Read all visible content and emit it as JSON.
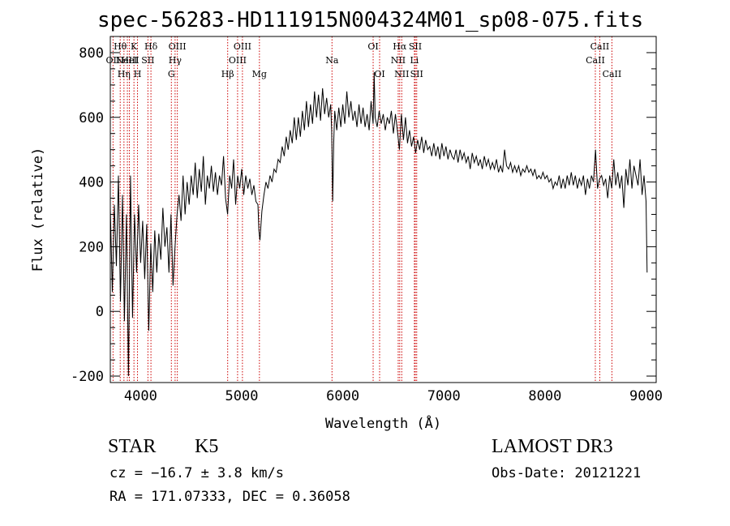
{
  "header": {
    "title": "spec-56283-HD111915N004324M01_sp08-075.fits"
  },
  "info": {
    "class_label": "STAR",
    "subclass": "K5",
    "survey": "LAMOST DR3",
    "cz_text": "cz = −16.7 ± 3.8 km/s",
    "obs_date_text": "Obs-Date: 20121221",
    "radec_text": "RA = 171.07333, DEC =    0.36058"
  },
  "chart_data": {
    "type": "line",
    "title": "spec-56283-HD111915N004324M01_sp08-075.fits",
    "xlabel": "Wavelength (Å)",
    "ylabel": "Flux (relative)",
    "xlim": [
      3700,
      9100
    ],
    "ylim": [
      -220,
      850
    ],
    "xticks": [
      4000,
      5000,
      6000,
      7000,
      8000,
      9000
    ],
    "yticks": [
      -200,
      0,
      200,
      400,
      600,
      800
    ],
    "line_color": "#000000",
    "marker_color": "#cc0000",
    "spectrum": [
      [
        3700,
        320
      ],
      [
        3720,
        60
      ],
      [
        3740,
        330
      ],
      [
        3760,
        140
      ],
      [
        3780,
        420
      ],
      [
        3800,
        30
      ],
      [
        3820,
        360
      ],
      [
        3840,
        -30
      ],
      [
        3860,
        300
      ],
      [
        3880,
        -200
      ],
      [
        3900,
        420
      ],
      [
        3920,
        -20
      ],
      [
        3940,
        300
      ],
      [
        3960,
        120
      ],
      [
        3980,
        330
      ],
      [
        4000,
        150
      ],
      [
        4020,
        280
      ],
      [
        4040,
        100
      ],
      [
        4060,
        270
      ],
      [
        4080,
        -60
      ],
      [
        4100,
        210
      ],
      [
        4120,
        60
      ],
      [
        4140,
        250
      ],
      [
        4160,
        120
      ],
      [
        4180,
        240
      ],
      [
        4200,
        160
      ],
      [
        4220,
        320
      ],
      [
        4240,
        200
      ],
      [
        4260,
        260
      ],
      [
        4280,
        120
      ],
      [
        4300,
        300
      ],
      [
        4320,
        80
      ],
      [
        4340,
        200
      ],
      [
        4360,
        300
      ],
      [
        4380,
        360
      ],
      [
        4400,
        280
      ],
      [
        4420,
        420
      ],
      [
        4440,
        300
      ],
      [
        4460,
        400
      ],
      [
        4480,
        330
      ],
      [
        4500,
        420
      ],
      [
        4520,
        360
      ],
      [
        4540,
        460
      ],
      [
        4560,
        350
      ],
      [
        4580,
        440
      ],
      [
        4600,
        370
      ],
      [
        4620,
        480
      ],
      [
        4640,
        330
      ],
      [
        4660,
        420
      ],
      [
        4680,
        380
      ],
      [
        4700,
        450
      ],
      [
        4720,
        370
      ],
      [
        4740,
        430
      ],
      [
        4760,
        360
      ],
      [
        4780,
        420
      ],
      [
        4800,
        390
      ],
      [
        4820,
        480
      ],
      [
        4840,
        350
      ],
      [
        4860,
        300
      ],
      [
        4880,
        420
      ],
      [
        4900,
        380
      ],
      [
        4920,
        470
      ],
      [
        4940,
        330
      ],
      [
        4960,
        420
      ],
      [
        4980,
        380
      ],
      [
        5000,
        440
      ],
      [
        5020,
        360
      ],
      [
        5040,
        420
      ],
      [
        5060,
        380
      ],
      [
        5080,
        410
      ],
      [
        5100,
        360
      ],
      [
        5120,
        390
      ],
      [
        5140,
        340
      ],
      [
        5160,
        330
      ],
      [
        5170,
        250
      ],
      [
        5180,
        220
      ],
      [
        5200,
        310
      ],
      [
        5220,
        360
      ],
      [
        5240,
        400
      ],
      [
        5260,
        380
      ],
      [
        5280,
        420
      ],
      [
        5300,
        400
      ],
      [
        5320,
        440
      ],
      [
        5340,
        430
      ],
      [
        5360,
        470
      ],
      [
        5380,
        460
      ],
      [
        5400,
        510
      ],
      [
        5420,
        480
      ],
      [
        5440,
        540
      ],
      [
        5460,
        500
      ],
      [
        5480,
        560
      ],
      [
        5500,
        520
      ],
      [
        5520,
        600
      ],
      [
        5540,
        530
      ],
      [
        5560,
        600
      ],
      [
        5580,
        540
      ],
      [
        5600,
        620
      ],
      [
        5620,
        560
      ],
      [
        5640,
        650
      ],
      [
        5660,
        570
      ],
      [
        5680,
        640
      ],
      [
        5700,
        580
      ],
      [
        5720,
        680
      ],
      [
        5740,
        600
      ],
      [
        5760,
        670
      ],
      [
        5780,
        590
      ],
      [
        5800,
        690
      ],
      [
        5820,
        610
      ],
      [
        5840,
        660
      ],
      [
        5860,
        600
      ],
      [
        5880,
        640
      ],
      [
        5890,
        560
      ],
      [
        5900,
        340
      ],
      [
        5910,
        520
      ],
      [
        5920,
        620
      ],
      [
        5940,
        560
      ],
      [
        5960,
        630
      ],
      [
        5980,
        570
      ],
      [
        6000,
        640
      ],
      [
        6020,
        580
      ],
      [
        6040,
        680
      ],
      [
        6060,
        600
      ],
      [
        6080,
        650
      ],
      [
        6100,
        590
      ],
      [
        6120,
        620
      ],
      [
        6140,
        570
      ],
      [
        6160,
        640
      ],
      [
        6180,
        580
      ],
      [
        6200,
        630
      ],
      [
        6220,
        570
      ],
      [
        6240,
        610
      ],
      [
        6260,
        560
      ],
      [
        6280,
        650
      ],
      [
        6300,
        580
      ],
      [
        6310,
        740
      ],
      [
        6320,
        600
      ],
      [
        6340,
        570
      ],
      [
        6360,
        620
      ],
      [
        6380,
        580
      ],
      [
        6400,
        610
      ],
      [
        6420,
        560
      ],
      [
        6440,
        600
      ],
      [
        6460,
        580
      ],
      [
        6480,
        620
      ],
      [
        6500,
        550
      ],
      [
        6520,
        610
      ],
      [
        6540,
        560
      ],
      [
        6560,
        500
      ],
      [
        6580,
        610
      ],
      [
        6600,
        530
      ],
      [
        6620,
        600
      ],
      [
        6640,
        520
      ],
      [
        6660,
        560
      ],
      [
        6680,
        510
      ],
      [
        6700,
        540
      ],
      [
        6720,
        490
      ],
      [
        6740,
        530
      ],
      [
        6760,
        500
      ],
      [
        6780,
        540
      ],
      [
        6800,
        490
      ],
      [
        6820,
        530
      ],
      [
        6840,
        500
      ],
      [
        6860,
        510
      ],
      [
        6880,
        480
      ],
      [
        6900,
        520
      ],
      [
        6920,
        480
      ],
      [
        6940,
        510
      ],
      [
        6960,
        470
      ],
      [
        6980,
        520
      ],
      [
        7000,
        480
      ],
      [
        7020,
        510
      ],
      [
        7040,
        470
      ],
      [
        7060,
        500
      ],
      [
        7080,
        480
      ],
      [
        7100,
        470
      ],
      [
        7120,
        500
      ],
      [
        7140,
        460
      ],
      [
        7160,
        500
      ],
      [
        7180,
        470
      ],
      [
        7200,
        490
      ],
      [
        7220,
        460
      ],
      [
        7240,
        480
      ],
      [
        7260,
        440
      ],
      [
        7280,
        490
      ],
      [
        7300,
        460
      ],
      [
        7320,
        480
      ],
      [
        7340,
        450
      ],
      [
        7360,
        470
      ],
      [
        7380,
        440
      ],
      [
        7400,
        480
      ],
      [
        7420,
        450
      ],
      [
        7440,
        470
      ],
      [
        7460,
        440
      ],
      [
        7480,
        460
      ],
      [
        7500,
        440
      ],
      [
        7520,
        470
      ],
      [
        7540,
        430
      ],
      [
        7560,
        450
      ],
      [
        7580,
        430
      ],
      [
        7600,
        500
      ],
      [
        7620,
        450
      ],
      [
        7640,
        440
      ],
      [
        7660,
        460
      ],
      [
        7680,
        430
      ],
      [
        7700,
        450
      ],
      [
        7720,
        430
      ],
      [
        7740,
        450
      ],
      [
        7760,
        420
      ],
      [
        7780,
        440
      ],
      [
        7800,
        430
      ],
      [
        7820,
        450
      ],
      [
        7840,
        430
      ],
      [
        7860,
        440
      ],
      [
        7880,
        420
      ],
      [
        7900,
        440
      ],
      [
        7920,
        410
      ],
      [
        7940,
        420
      ],
      [
        7960,
        410
      ],
      [
        7980,
        430
      ],
      [
        8000,
        410
      ],
      [
        8020,
        420
      ],
      [
        8040,
        400
      ],
      [
        8060,
        410
      ],
      [
        8080,
        380
      ],
      [
        8100,
        400
      ],
      [
        8120,
        390
      ],
      [
        8140,
        420
      ],
      [
        8160,
        380
      ],
      [
        8180,
        410
      ],
      [
        8200,
        380
      ],
      [
        8220,
        420
      ],
      [
        8240,
        390
      ],
      [
        8260,
        430
      ],
      [
        8280,
        390
      ],
      [
        8300,
        420
      ],
      [
        8320,
        380
      ],
      [
        8340,
        410
      ],
      [
        8360,
        390
      ],
      [
        8380,
        420
      ],
      [
        8400,
        360
      ],
      [
        8420,
        410
      ],
      [
        8440,
        380
      ],
      [
        8460,
        420
      ],
      [
        8480,
        400
      ],
      [
        8500,
        500
      ],
      [
        8520,
        380
      ],
      [
        8540,
        410
      ],
      [
        8560,
        420
      ],
      [
        8580,
        390
      ],
      [
        8600,
        410
      ],
      [
        8620,
        350
      ],
      [
        8640,
        420
      ],
      [
        8660,
        380
      ],
      [
        8680,
        470
      ],
      [
        8700,
        390
      ],
      [
        8720,
        430
      ],
      [
        8740,
        380
      ],
      [
        8760,
        420
      ],
      [
        8780,
        320
      ],
      [
        8800,
        440
      ],
      [
        8820,
        390
      ],
      [
        8840,
        470
      ],
      [
        8860,
        380
      ],
      [
        8880,
        450
      ],
      [
        8900,
        420
      ],
      [
        8920,
        390
      ],
      [
        8940,
        470
      ],
      [
        8960,
        360
      ],
      [
        8980,
        420
      ],
      [
        9000,
        340
      ],
      [
        9010,
        120
      ]
    ],
    "lines": [
      {
        "x": 3727,
        "label": "OII",
        "row": 1
      },
      {
        "x": 3798,
        "label": "Hθ",
        "row": 0
      },
      {
        "x": 3835,
        "label": "Hη",
        "row": 2
      },
      {
        "x": 3869,
        "label": "NeIII",
        "row": 1
      },
      {
        "x": 3889,
        "label": "HeI",
        "row": 1
      },
      {
        "x": 3934,
        "label": "K",
        "row": 0
      },
      {
        "x": 3969,
        "label": "H",
        "row": 2
      },
      {
        "x": 4072,
        "label": "SII",
        "row": 1
      },
      {
        "x": 4102,
        "label": "Hδ",
        "row": 0
      },
      {
        "x": 4304,
        "label": "G",
        "row": 2
      },
      {
        "x": 4341,
        "label": "Hγ",
        "row": 1
      },
      {
        "x": 4363,
        "label": "OIII",
        "row": 0
      },
      {
        "x": 4861,
        "label": "Hβ",
        "row": 2
      },
      {
        "x": 4959,
        "label": "OIII",
        "row": 1
      },
      {
        "x": 5007,
        "label": "OIII",
        "row": 0
      },
      {
        "x": 5175,
        "label": "Mg",
        "row": 2
      },
      {
        "x": 5893,
        "label": "Na",
        "row": 1
      },
      {
        "x": 6300,
        "label": "OI",
        "row": 0
      },
      {
        "x": 6364,
        "label": "OI",
        "row": 2
      },
      {
        "x": 6548,
        "label": "NII",
        "row": 1
      },
      {
        "x": 6563,
        "label": "Hα",
        "row": 0
      },
      {
        "x": 6583,
        "label": "NII",
        "row": 2
      },
      {
        "x": 6708,
        "label": "Li",
        "row": 1
      },
      {
        "x": 6717,
        "label": "SII",
        "row": 0
      },
      {
        "x": 6731,
        "label": "SII",
        "row": 2
      },
      {
        "x": 8498,
        "label": "CaII",
        "row": 1
      },
      {
        "x": 8542,
        "label": "CaII",
        "row": 0
      },
      {
        "x": 8662,
        "label": "CaII",
        "row": 2
      }
    ]
  }
}
